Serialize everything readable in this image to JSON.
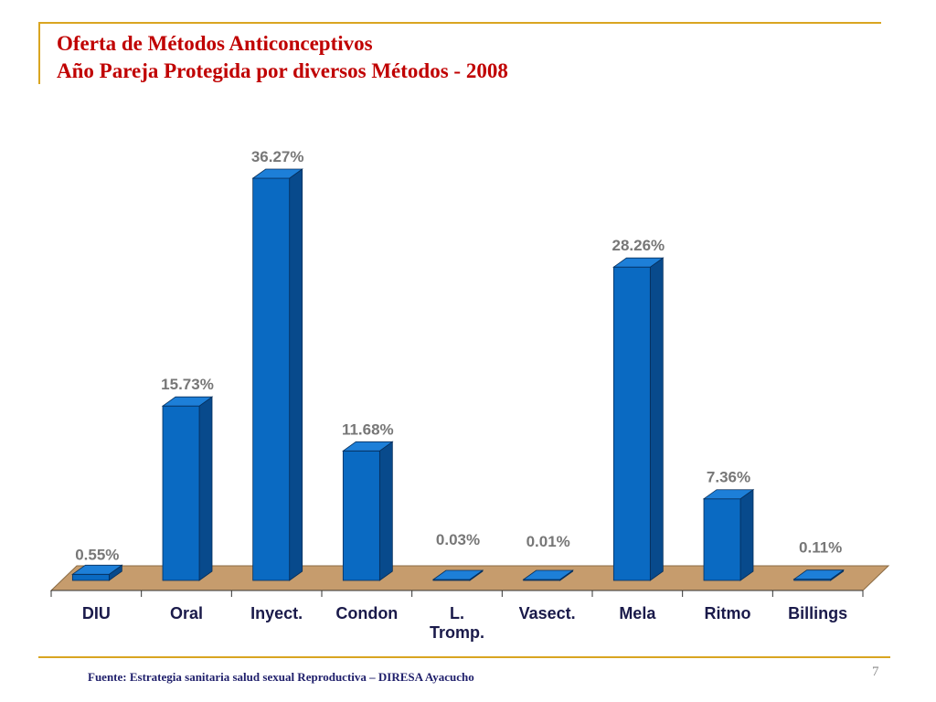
{
  "title_line1": "Oferta de Métodos Anticonceptivos",
  "title_line2": "Año Pareja Protegida por diversos Métodos - 2008",
  "source": "Fuente:  Estrategia sanitaria salud sexual Reproductiva – DIRESA Ayacucho",
  "page_number": "7",
  "colors": {
    "accent_rule": "#d9a521",
    "title": "#c00000",
    "bar_front": "#0a6ac2",
    "bar_side": "#084a8c",
    "bar_top": "#1d7fd8",
    "floor": "#c69c6d",
    "data_label": "#777777"
  },
  "chart_data": {
    "type": "bar",
    "style": "3d",
    "categories": [
      "DIU",
      "Oral",
      "Inyect.",
      "Condon",
      "L.\nTromp.",
      "Vasect.",
      "Mela",
      "Ritmo",
      "Billings"
    ],
    "values": [
      0.55,
      15.73,
      36.27,
      11.68,
      0.03,
      0.01,
      28.26,
      7.36,
      0.11
    ],
    "data_labels": [
      "0.55%",
      "15.73%",
      "36.27%",
      "11.68%",
      "0.03%",
      "0.01%",
      "28.26%",
      "7.36%",
      "0.11%"
    ],
    "ylim": [
      0,
      36.27
    ],
    "grid": false,
    "legend": "none"
  }
}
